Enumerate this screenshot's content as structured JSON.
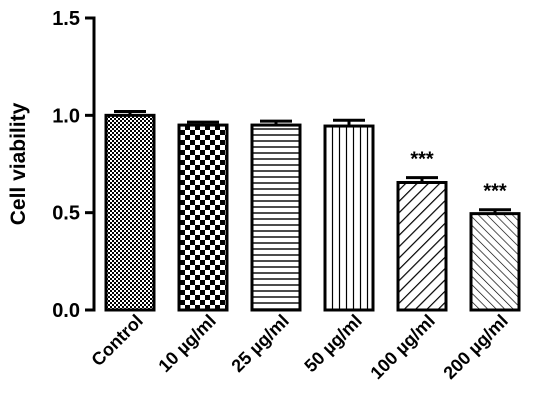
{
  "chart_data": {
    "type": "bar",
    "title": "",
    "xlabel": "",
    "ylabel": "Cell viability",
    "ylim": [
      0,
      1.5
    ],
    "yticks": [
      "0.0",
      "0.5",
      "1.0",
      "1.5"
    ],
    "categories": [
      "Control",
      "10 µg/ml",
      "25 µg/ml",
      "50 µg/ml",
      "100 µg/ml",
      "200 µg/ml"
    ],
    "values": [
      1.0,
      0.95,
      0.95,
      0.945,
      0.655,
      0.495
    ],
    "errors": [
      0.02,
      0.015,
      0.02,
      0.03,
      0.025,
      0.02
    ],
    "patterns": [
      "crosshatch-fine",
      "checker",
      "horizontal",
      "vertical",
      "diagonal-wide",
      "diagonal-fine"
    ],
    "annotations": [
      "",
      "",
      "",
      "",
      "***",
      "***"
    ],
    "grid": false,
    "bar_fill_color": "#ffffff",
    "stroke_color": "#000000"
  }
}
